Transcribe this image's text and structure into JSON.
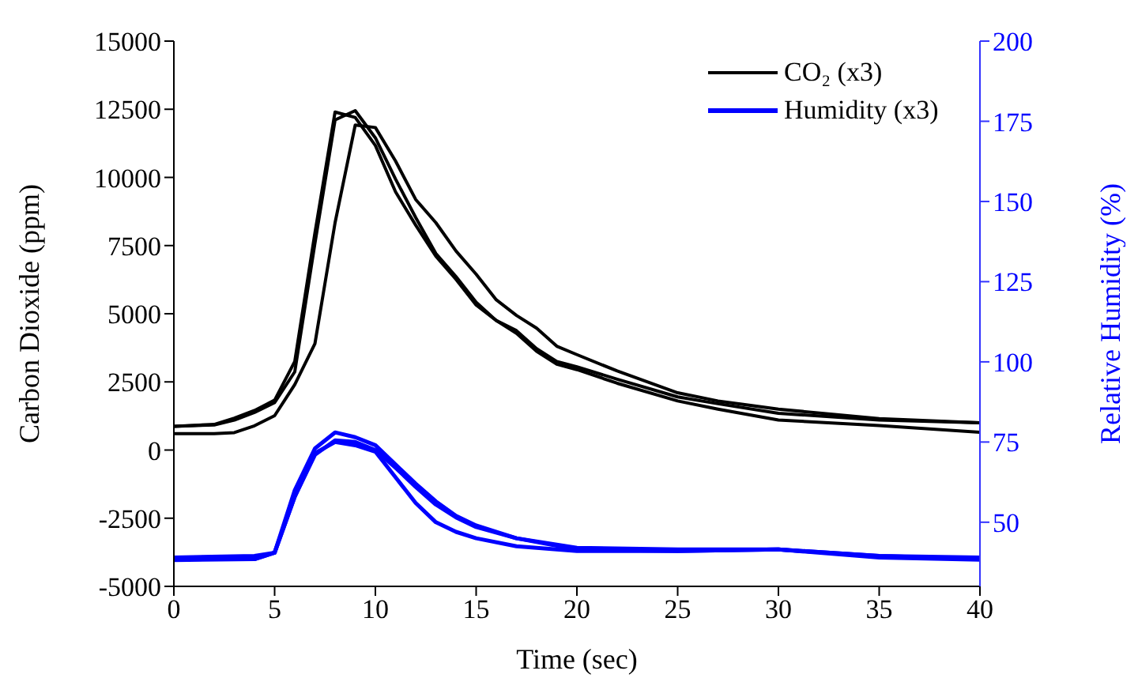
{
  "chart_data": {
    "type": "line",
    "xlabel": "Time (sec)",
    "ylabel": "Carbon Dioxide (ppm)",
    "y2label": "Relative Humidity (%)",
    "xlim": [
      0,
      40
    ],
    "xticks": [
      0,
      5,
      10,
      15,
      20,
      25,
      30,
      35,
      40
    ],
    "ylim": [
      -5000,
      15000
    ],
    "yticks": [
      -5000,
      -2500,
      0,
      2500,
      5000,
      7500,
      10000,
      12500,
      15000
    ],
    "y2lim": [
      30,
      200
    ],
    "y2ticks": [
      50,
      75,
      100,
      125,
      150,
      175,
      200
    ],
    "grid": false,
    "legend": "top right",
    "marker": "none",
    "line_style": "solid",
    "series": [
      {
        "name": "CO₂ (x3)",
        "color": "#000000",
        "x": [
          0,
          2,
          3,
          4,
          5,
          6,
          7,
          8,
          9,
          10,
          11,
          12,
          13,
          14,
          15,
          16,
          17,
          18,
          19,
          20,
          22,
          25,
          27,
          30,
          35,
          40
        ],
        "values": [
          870,
          940,
          1170,
          1450,
          1830,
          3250,
          7960,
          12400,
          12200,
          11170,
          9470,
          8250,
          7110,
          6260,
          5320,
          4750,
          4380,
          3720,
          3250,
          3050,
          2600,
          1950,
          1700,
          1350,
          1100,
          1000
        ]
      },
      {
        "color": "#000000",
        "x": [
          0,
          2,
          3,
          4,
          5,
          6,
          7,
          8,
          9,
          10,
          11,
          12,
          13,
          14,
          15,
          16,
          17,
          18,
          19,
          20,
          22,
          25,
          27,
          30,
          35,
          40
        ],
        "values": [
          870,
          920,
          1100,
          1380,
          1740,
          2870,
          7580,
          12110,
          12450,
          11450,
          9940,
          8530,
          7210,
          6360,
          5420,
          4750,
          4280,
          3620,
          3150,
          2950,
          2450,
          1800,
          1500,
          1100,
          900,
          650
        ]
      },
      {
        "color": "#000000",
        "x": [
          0,
          2,
          3,
          4,
          5,
          6,
          7,
          8,
          9,
          10,
          11,
          12,
          13,
          14,
          15,
          16,
          17,
          18,
          19,
          20,
          22,
          25,
          27,
          30,
          35,
          40
        ],
        "values": [
          600,
          600,
          640,
          890,
          1260,
          2400,
          3900,
          8340,
          11920,
          11830,
          10600,
          9190,
          8340,
          7300,
          6450,
          5510,
          4940,
          4470,
          3810,
          3500,
          2900,
          2100,
          1800,
          1500,
          1150,
          1000
        ]
      },
      {
        "name": "Humidity (x3)",
        "color": "#0000ff",
        "axis": "y2",
        "x": [
          0,
          4,
          5,
          6,
          7,
          8,
          9,
          10,
          11,
          12,
          13,
          14,
          15,
          17,
          20,
          25,
          30,
          35,
          40
        ],
        "values": [
          39,
          39.5,
          40.5,
          60,
          73,
          78,
          76.5,
          74,
          68,
          62,
          56.5,
          52,
          49,
          45,
          42,
          41.5,
          41.5,
          39.5,
          39
        ]
      },
      {
        "color": "#0000ff",
        "axis": "y2",
        "x": [
          0,
          4,
          5,
          6,
          7,
          8,
          9,
          10,
          11,
          12,
          13,
          14,
          15,
          17,
          20,
          25,
          30,
          35,
          40
        ],
        "values": [
          38.5,
          38.5,
          40.5,
          58,
          71,
          75.5,
          75,
          72.5,
          67,
          61,
          55.5,
          51.5,
          48.5,
          45,
          41.5,
          41,
          41.5,
          39.5,
          38.5
        ]
      },
      {
        "color": "#0000ff",
        "axis": "y2",
        "x": [
          0,
          4,
          5,
          6,
          7,
          8,
          9,
          10,
          11,
          12,
          13,
          14,
          15,
          17,
          20,
          25,
          30,
          35,
          40
        ],
        "values": [
          38.2,
          38.5,
          40.5,
          58,
          71.5,
          75,
          74,
          72,
          64,
          56,
          50,
          47,
          45,
          42.5,
          41,
          41,
          41.5,
          39,
          38.3
        ]
      }
    ]
  }
}
